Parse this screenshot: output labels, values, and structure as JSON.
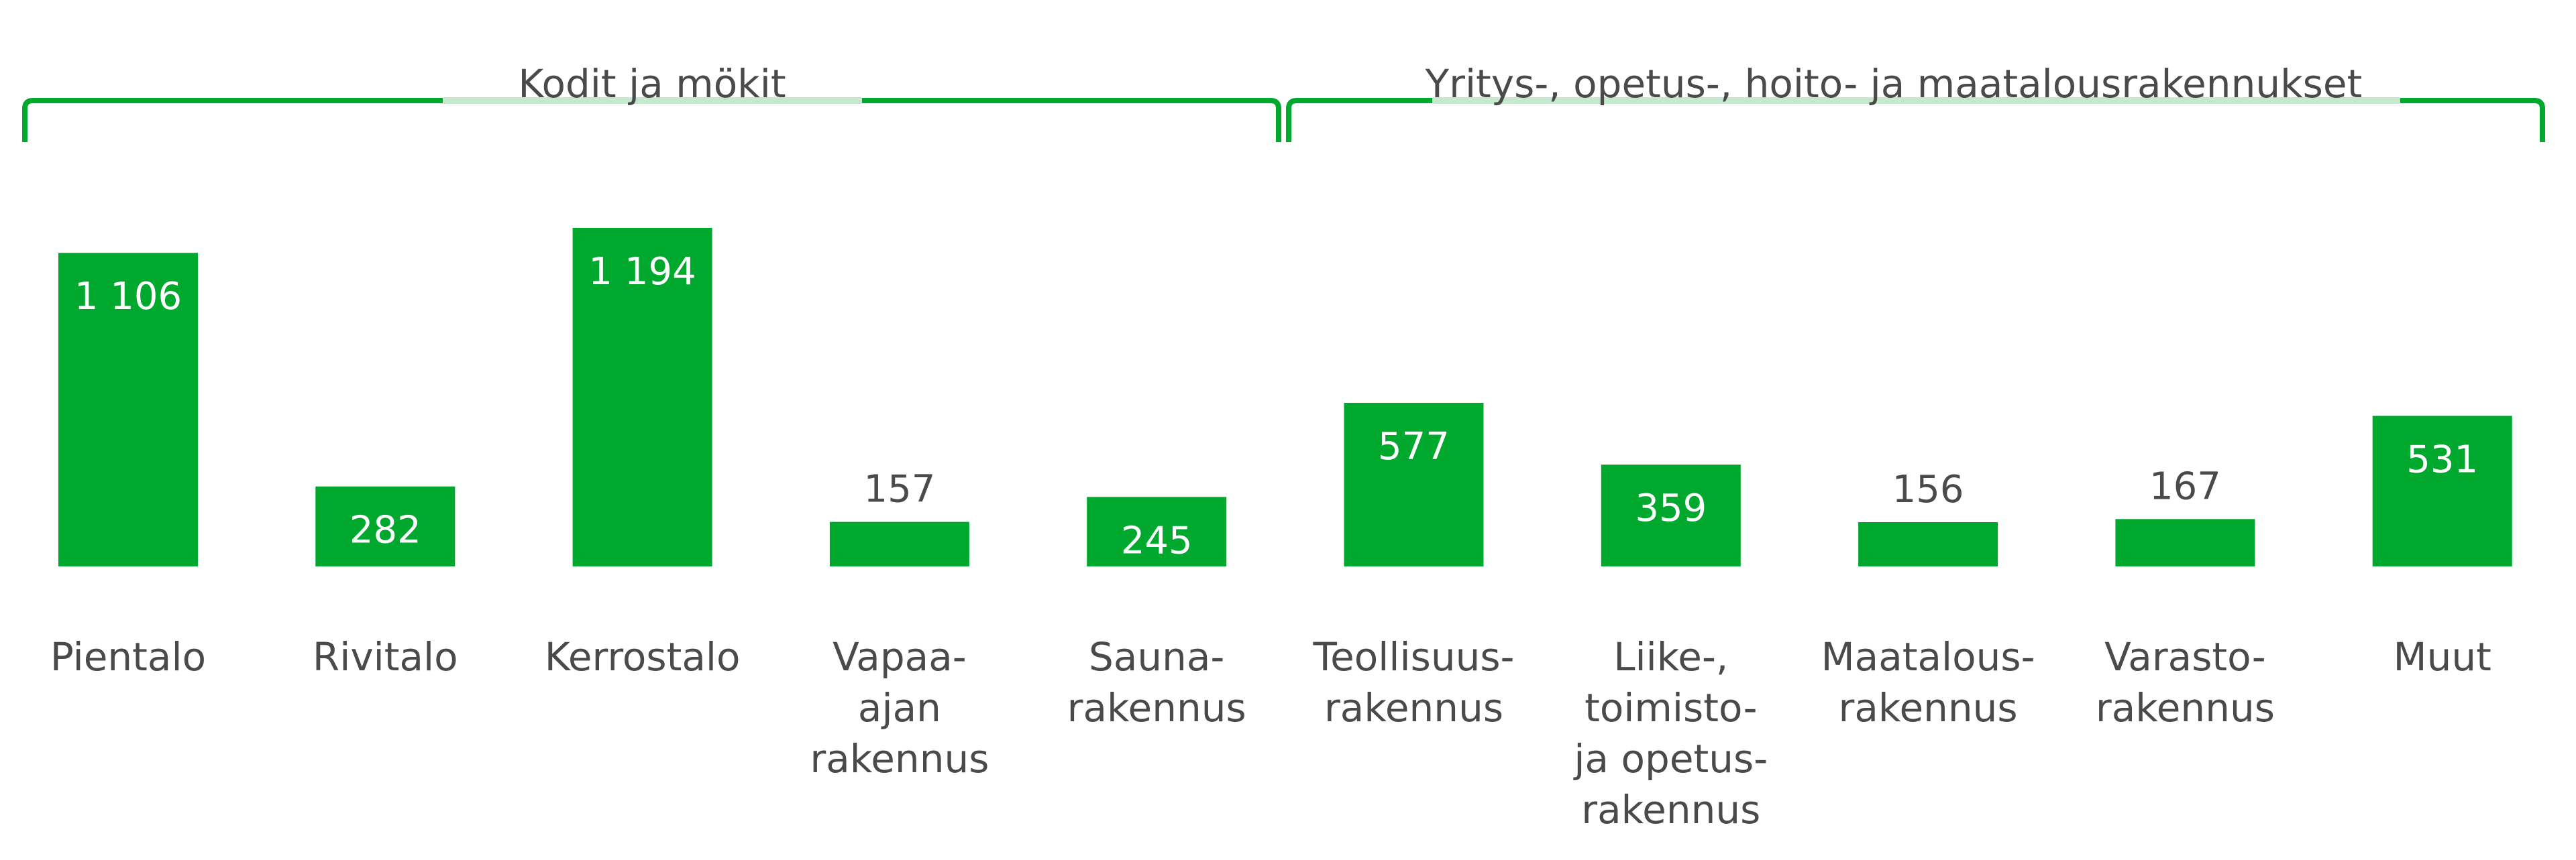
{
  "chart_data": {
    "type": "bar",
    "groups": [
      {
        "label": "Kodit ja mökit",
        "categories": [
          "Pientalo",
          "Rivitalo",
          "Kerrostalo",
          "Vapaa-ajan rakennus",
          "Saunarakennus"
        ]
      },
      {
        "label": "Yritys-, opetus-, hoito- ja maatalousrakennukset",
        "categories": [
          "Teollisuusrakennus",
          "Liike-, toimisto- ja opetusrakennus",
          "Maatalousrakennus",
          "Varastorakennus",
          "Muut"
        ]
      }
    ],
    "categories": [
      "Pientalo",
      "Rivitalo",
      "Kerrostalo",
      "Vapaa-ajan rakennus",
      "Saunarakennus",
      "Teollisuusrakennus",
      "Liike-, toimisto- ja opetusrakennus",
      "Maatalousrakennus",
      "Varastorakennus",
      "Muut"
    ],
    "category_label_lines": [
      [
        "Pientalo"
      ],
      [
        "Rivitalo"
      ],
      [
        "Kerrostalo"
      ],
      [
        "Vapaa-",
        "ajan",
        "rakennus"
      ],
      [
        "Sauna-",
        "rakennus"
      ],
      [
        "Teollisuus-",
        "rakennus"
      ],
      [
        "Liike-,",
        "toimisto-",
        "ja opetus-",
        "rakennus"
      ],
      [
        "Maatalous-",
        "rakennus"
      ],
      [
        "Varasto-",
        "rakennus"
      ],
      [
        "Muut"
      ]
    ],
    "values": [
      1106,
      282,
      1194,
      157,
      245,
      577,
      359,
      156,
      167,
      531
    ],
    "value_labels": [
      "1 106",
      "282",
      "1 194",
      "157",
      "245",
      "577",
      "359",
      "156",
      "167",
      "531"
    ],
    "bar_color": "#00a82d",
    "bracket_color": "#00a82d",
    "bracket_light_color": "#c6e8cf",
    "ylim": [
      0,
      1194
    ],
    "grid": false,
    "legend": "none"
  }
}
